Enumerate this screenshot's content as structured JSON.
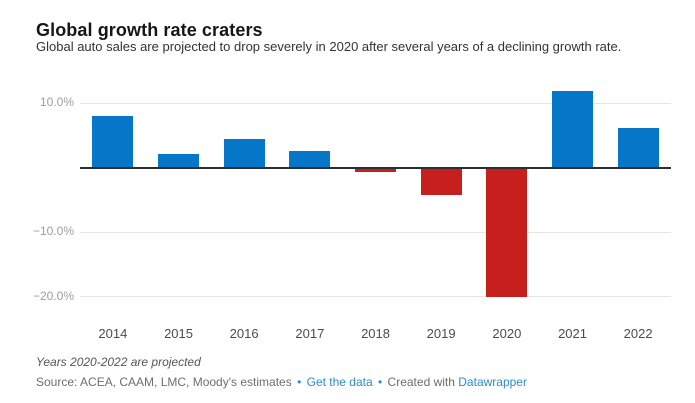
{
  "header": {
    "title": "Global growth rate craters",
    "subtitle": "Global auto sales are projected to drop severely in 2020 after several years of a declining growth rate."
  },
  "chart_data": {
    "type": "bar",
    "title": "Global growth rate craters",
    "subtitle": "Global auto sales are projected to drop severely in 2020 after several years of a declining growth rate.",
    "categories": [
      "2014",
      "2015",
      "2016",
      "2017",
      "2018",
      "2019",
      "2020",
      "2021",
      "2022"
    ],
    "values": [
      8.0,
      2.1,
      4.5,
      2.5,
      -0.7,
      -4.3,
      -20.0,
      11.8,
      6.1
    ],
    "unit": "%",
    "xlabel": "",
    "ylabel": "",
    "ylim": [
      -22,
      13
    ],
    "grid": "horizontal",
    "legend": "none",
    "y_ticks": [
      {
        "value": 10,
        "label": "10.0%"
      },
      {
        "value": -10,
        "label": "−10.0%"
      },
      {
        "value": -20,
        "label": "−20.0%"
      }
    ],
    "positive_color": "#0677c8",
    "negative_color": "#c71e1e",
    "baseline_color": "#2e2e2e",
    "gridline_color": "#e4e4e4"
  },
  "footer": {
    "note": "Years 2020-2022 are projected",
    "source_prefix": "Source: ACEA, CAAM, LMC, Moody's estimates",
    "separator": "•",
    "get_data_label": "Get the data",
    "created_with": "Created with",
    "datawrapper_label": "Datawrapper",
    "link_color": "#2e8cc7"
  }
}
